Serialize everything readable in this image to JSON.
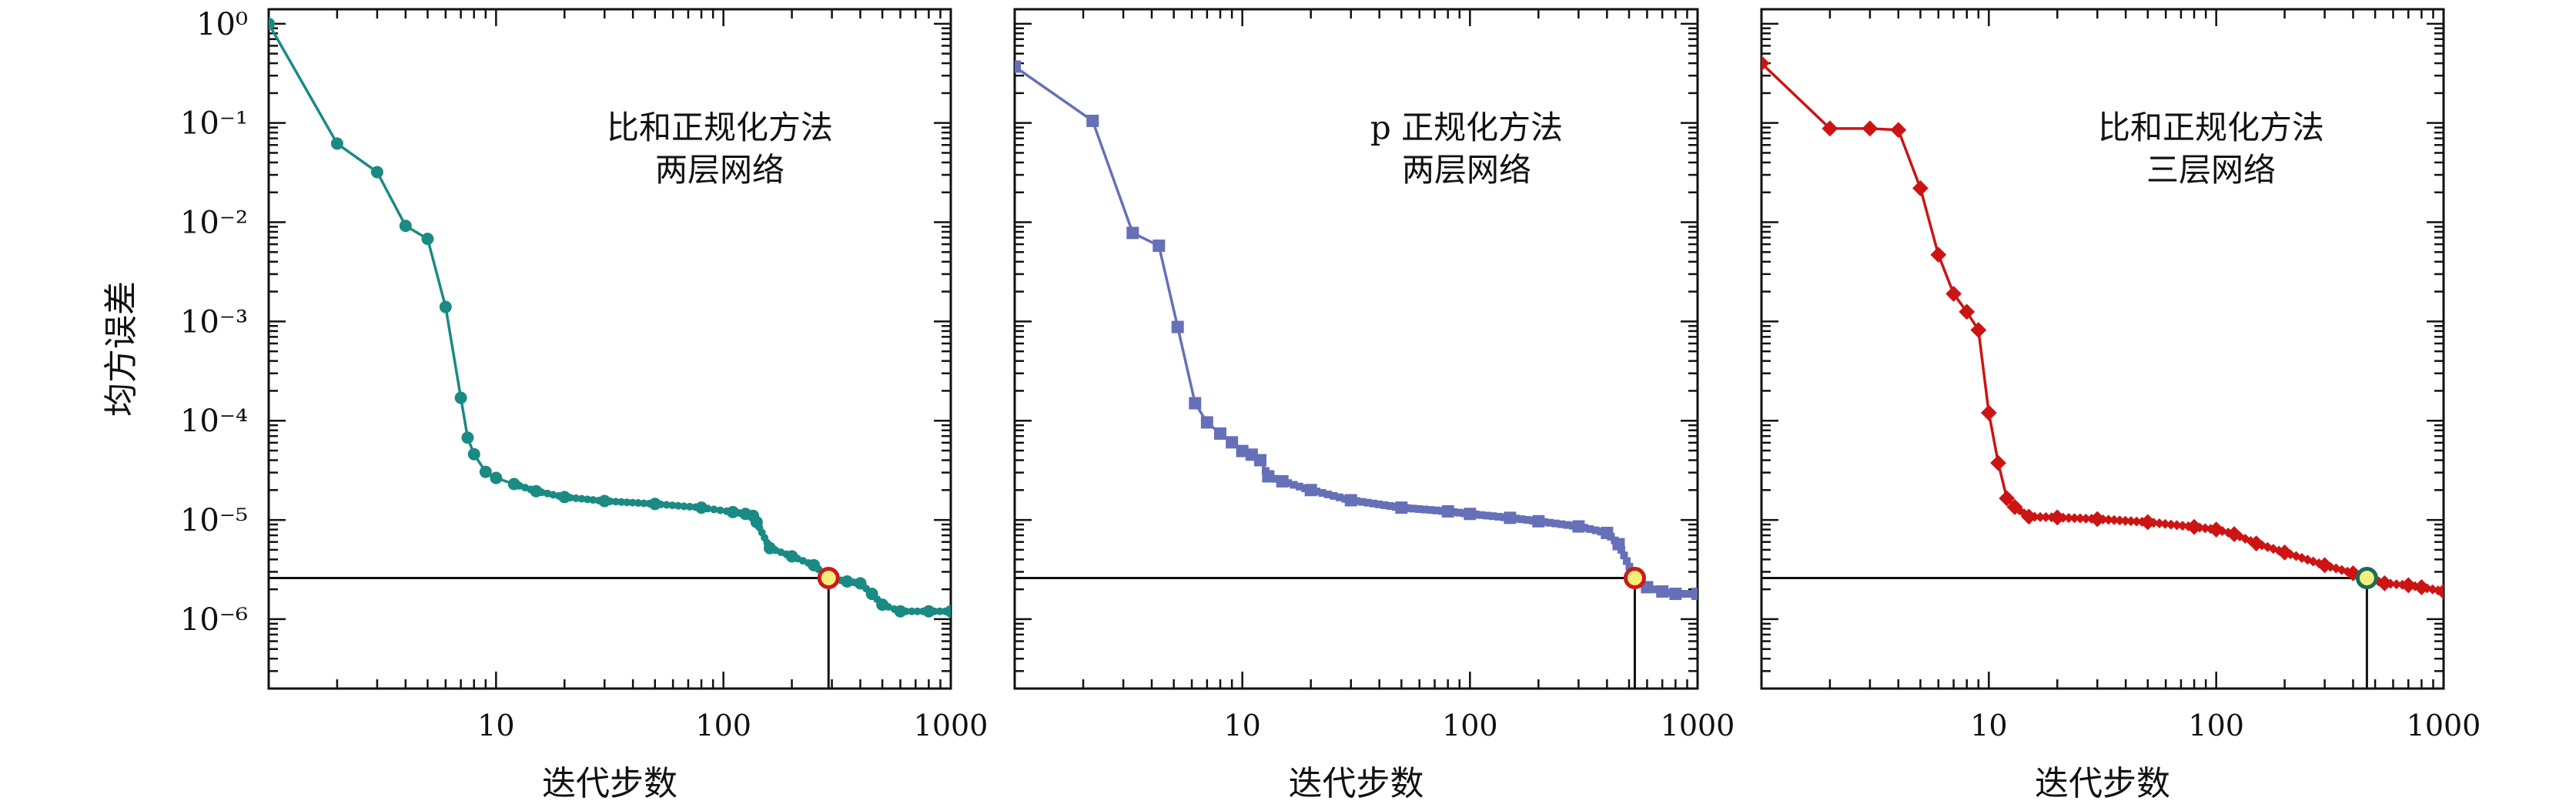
{
  "ylabel": "均方误差",
  "tick_labels": {
    "x": [
      "10",
      "100",
      "1000"
    ],
    "y": [
      "10⁰",
      "10⁻¹",
      "10⁻²",
      "10⁻³",
      "10⁻⁴",
      "10⁻⁵",
      "10⁻⁶"
    ]
  },
  "chart_data": [
    {
      "type": "line",
      "title_lines": [
        "比和正规化方法",
        "两层网络"
      ],
      "xlabel": "迭代步数",
      "ylabel": "均方误差",
      "xscale": "log",
      "yscale": "log",
      "xlim": [
        1,
        1000
      ],
      "ylim": [
        2e-07,
        1.4
      ],
      "color": "#1a8a84",
      "marker": "circle",
      "threshold": 2.6e-06,
      "convergence_point": {
        "x": 290,
        "y": 2.6e-06
      },
      "series": [
        {
          "x": [
            1,
            2,
            3,
            4,
            5,
            6,
            7,
            7.5,
            8,
            9,
            10,
            12,
            15,
            20,
            30,
            50,
            80,
            110,
            125,
            135,
            140,
            160,
            200,
            250,
            290,
            350,
            400,
            450,
            500,
            600,
            800,
            1000
          ],
          "y": [
            1.0,
            0.062,
            0.032,
            0.0092,
            0.0068,
            0.0014,
            0.00017,
            6.75e-05,
            4.6e-05,
            3.05e-05,
            2.65e-05,
            2.3e-05,
            1.95e-05,
            1.7e-05,
            1.55e-05,
            1.45e-05,
            1.33e-05,
            1.2e-05,
            1.15e-05,
            1.1e-05,
            9.5e-06,
            5.2e-06,
            4.3e-06,
            3.5e-06,
            2.6e-06,
            2.4e-06,
            2.3e-06,
            1.8e-06,
            1.4e-06,
            1.2e-06,
            1.2e-06,
            1.2e-06
          ]
        }
      ]
    },
    {
      "type": "line",
      "title_lines": [
        "p 正规化方法",
        "两层网络"
      ],
      "xlabel": "迭代步数",
      "xscale": "log",
      "yscale": "log",
      "xlim": [
        1,
        1000
      ],
      "ylim": [
        2e-07,
        1.4
      ],
      "color": "#6570b8",
      "marker": "square",
      "threshold": 2.6e-06,
      "convergence_point": {
        "x": 530,
        "y": 2.6e-06
      },
      "series": [
        {
          "x": [
            1,
            2.2,
            3.3,
            4.3,
            5.2,
            6.2,
            7,
            8,
            9,
            10,
            11,
            12,
            13,
            15,
            20,
            30,
            50,
            80,
            100,
            150,
            200,
            300,
            400,
            450,
            530,
            600,
            700,
            800,
            1000
          ],
          "y": [
            0.37,
            0.105,
            0.0078,
            0.0058,
            0.00088,
            0.00015,
            9.62e-05,
            7.42e-05,
            6.05e-05,
            4.95e-05,
            4.55e-05,
            4e-05,
            2.75e-05,
            2.45e-05,
            2e-05,
            1.58e-05,
            1.33e-05,
            1.22e-05,
            1.15e-05,
            1.05e-05,
            9.7e-06,
            8.6e-06,
            7.4e-06,
            5.7e-06,
            2.6e-06,
            2.1e-06,
            1.9e-06,
            1.8e-06,
            1.8e-06
          ]
        }
      ]
    },
    {
      "type": "line",
      "title_lines": [
        "比和正规化方法",
        "三层网络"
      ],
      "xlabel": "迭代步数",
      "xscale": "log",
      "yscale": "log",
      "xlim": [
        1,
        1000
      ],
      "ylim": [
        2e-07,
        1.4
      ],
      "color": "#cc1414",
      "marker": "diamond",
      "threshold": 2.6e-06,
      "convergence_point": {
        "x": 460,
        "y": 2.6e-06
      },
      "series": [
        {
          "x": [
            1,
            2,
            3,
            4,
            5,
            6,
            7,
            8,
            9,
            10,
            11,
            12,
            13,
            15,
            20,
            30,
            50,
            80,
            100,
            120,
            150,
            200,
            300,
            400,
            460,
            550,
            700,
            800,
            1000
          ],
          "y": [
            0.4,
            0.088,
            0.088,
            0.085,
            0.022,
            0.0047,
            0.0019,
            0.00125,
            0.00082,
            0.00012,
            3.75e-05,
            1.65e-05,
            1.35e-05,
            1.08e-05,
            1.06e-05,
            1.02e-05,
            9.5e-06,
            8.5e-06,
            8e-06,
            7.2e-06,
            5.8e-06,
            4.7e-06,
            3.5e-06,
            2.9e-06,
            2.6e-06,
            2.3e-06,
            2.2e-06,
            2.1e-06,
            1.9e-06
          ]
        }
      ]
    }
  ]
}
